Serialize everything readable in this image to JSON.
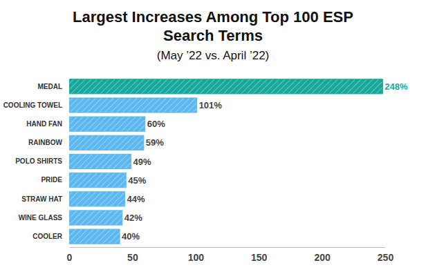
{
  "chart_data": {
    "type": "bar",
    "orientation": "horizontal",
    "title": "Largest Increases Among Top 100 ESP Search Terms",
    "subtitle": "(May ’22 vs. April ’22)",
    "categories": [
      "MEDAL",
      "COOLING TOWEL",
      "HAND FAN",
      "RAINBOW",
      "POLO SHIRTS",
      "PRIDE",
      "STRAW HAT",
      "WINE GLASS",
      "COOLER"
    ],
    "values": [
      248,
      101,
      60,
      59,
      49,
      45,
      44,
      42,
      40
    ],
    "value_labels": [
      "248%",
      "101%",
      "60%",
      "59%",
      "49%",
      "45%",
      "44%",
      "42%",
      "40%"
    ],
    "colors": [
      "#17a89a",
      "#5cb8ee",
      "#5cb8ee",
      "#5cb8ee",
      "#5cb8ee",
      "#5cb8ee",
      "#5cb8ee",
      "#5cb8ee",
      "#5cb8ee"
    ],
    "xlim": [
      0,
      250
    ],
    "xticks": [
      0,
      50,
      100,
      150,
      200,
      250
    ],
    "grid": false,
    "data_labels": true
  }
}
